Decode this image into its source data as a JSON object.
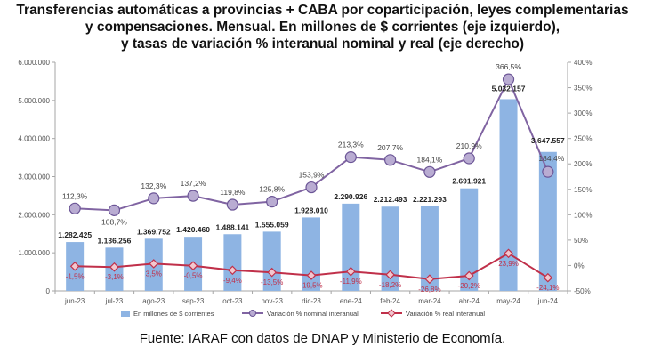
{
  "title_lines": [
    "Transferencias automáticas a provincias + CABA por coparticipación, leyes complementarias",
    "y compensaciones. Mensual. En millones de $ corrientes (eje izquierdo),",
    "y tasas de variación % interanual nominal y real (eje derecho)"
  ],
  "source": "Fuente: IARAF con datos de DNAP y Ministerio de Economía.",
  "colors": {
    "bar": "#8eb4e3",
    "nominal": "#8064a2",
    "real": "#c0304a"
  },
  "chart_data": {
    "type": "bar",
    "categories": [
      "jun-23",
      "jul-23",
      "ago-23",
      "sep-23",
      "oct-23",
      "nov-23",
      "dic-23",
      "ene-24",
      "feb-24",
      "mar-24",
      "abr-24",
      "may-24",
      "jun-24"
    ],
    "y_left": {
      "ylim": [
        0,
        6000000
      ],
      "ticks": [
        "0",
        "1.000.000",
        "2.000.000",
        "3.000.000",
        "4.000.000",
        "5.000.000",
        "6.000.000"
      ]
    },
    "y_right": {
      "ylim": [
        -50,
        400
      ],
      "ticks": [
        "-50%",
        "0%",
        "50%",
        "100%",
        "150%",
        "200%",
        "250%",
        "300%",
        "350%",
        "400%"
      ]
    },
    "grid": false,
    "legend_position": "bottom",
    "series": [
      {
        "name": "En millones de $ corrientes",
        "type": "bar",
        "axis": "left",
        "values": [
          1282425,
          1136256,
          1369752,
          1420460,
          1488141,
          1555059,
          1928010,
          2290926,
          2212493,
          2221293,
          2691921,
          5032157,
          3647557
        ],
        "labels": [
          "1.282.425",
          "1.136.256",
          "1.369.752",
          "1.420.460",
          "1.488.141",
          "1.555.059",
          "1.928.010",
          "2.290.926",
          "2.212.493",
          "2.221.293",
          "2.691.921",
          "5.032.157",
          "3.647.557"
        ]
      },
      {
        "name": "Variación % nominal interanual",
        "type": "line",
        "axis": "right",
        "values": [
          112.3,
          108.7,
          132.3,
          137.2,
          119.8,
          125.8,
          153.9,
          213.3,
          207.7,
          184.1,
          210.9,
          366.5,
          184.4
        ],
        "labels": [
          "112,3%",
          "108,7%",
          "132,3%",
          "137,2%",
          "119,8%",
          "125,8%",
          "153,9%",
          "213,3%",
          "207,7%",
          "184,1%",
          "210,9%",
          "366,5%",
          "184,4%"
        ]
      },
      {
        "name": "Variación % real interanual",
        "type": "line",
        "axis": "right",
        "values": [
          -1.5,
          -3.1,
          3.5,
          -0.5,
          -9.4,
          -13.5,
          -19.5,
          -11.9,
          -18.2,
          -26.8,
          -20.2,
          23.9,
          -24.1
        ],
        "labels": [
          "-1,5%",
          "-3,1%",
          "3,5%",
          "-0,5%",
          "-9,4%",
          "-13,5%",
          "-19,5%",
          "-11,9%",
          "-18,2%",
          "-26,8%",
          "-20,2%",
          "23,9%",
          "-24,1%"
        ]
      }
    ]
  }
}
